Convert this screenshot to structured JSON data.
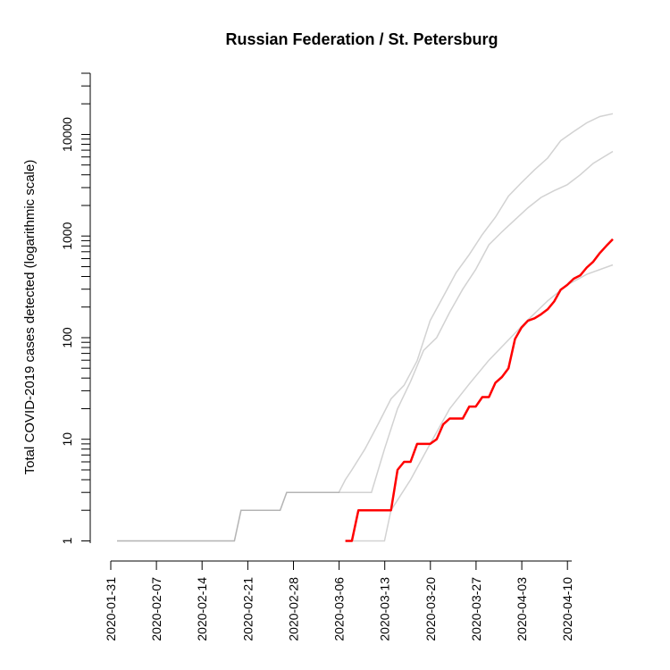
{
  "chart_data": {
    "type": "line",
    "title": "Russian Federation / St. Petersburg",
    "ylabel": "Total COVID-2019 cases detected (logarithmic scale)",
    "xlabel": "",
    "y_scale": "log",
    "xlim": [
      "2020-01-31",
      "2020-04-16"
    ],
    "ylim": [
      0.95,
      40000
    ],
    "x_tick_labels": [
      "2020-01-31",
      "2020-02-07",
      "2020-02-14",
      "2020-02-21",
      "2020-02-28",
      "2020-03-06",
      "2020-03-13",
      "2020-03-20",
      "2020-03-27",
      "2020-04-03",
      "2020-04-10"
    ],
    "y_tick_labels": [
      "1",
      "10",
      "100",
      "1000",
      "10000"
    ],
    "y_tick_values": [
      1,
      10,
      100,
      1000,
      10000
    ],
    "grid": false,
    "colors": {
      "highlight": "#ff0000",
      "background_series": "#7f7f7f"
    },
    "highlight_series": {
      "name": "St. Petersburg",
      "points": [
        [
          "2020-03-06",
          1
        ],
        [
          "2020-03-07",
          1
        ],
        [
          "2020-03-08",
          2
        ],
        [
          "2020-03-09",
          2
        ],
        [
          "2020-03-10",
          2
        ],
        [
          "2020-03-11",
          2
        ],
        [
          "2020-03-12",
          2
        ],
        [
          "2020-03-13",
          2
        ],
        [
          "2020-03-14",
          5
        ],
        [
          "2020-03-15",
          6
        ],
        [
          "2020-03-16",
          6
        ],
        [
          "2020-03-17",
          9
        ],
        [
          "2020-03-18",
          9
        ],
        [
          "2020-03-19",
          9
        ],
        [
          "2020-03-20",
          10
        ],
        [
          "2020-03-21",
          14
        ],
        [
          "2020-03-22",
          16
        ],
        [
          "2020-03-23",
          16
        ],
        [
          "2020-03-24",
          16
        ],
        [
          "2020-03-25",
          21
        ],
        [
          "2020-03-26",
          21
        ],
        [
          "2020-03-27",
          26
        ],
        [
          "2020-03-28",
          26
        ],
        [
          "2020-03-29",
          36
        ],
        [
          "2020-03-30",
          41
        ],
        [
          "2020-03-31",
          50
        ],
        [
          "2020-04-01",
          97
        ],
        [
          "2020-04-02",
          126
        ],
        [
          "2020-04-03",
          147
        ],
        [
          "2020-04-04",
          155
        ],
        [
          "2020-04-05",
          170
        ],
        [
          "2020-04-06",
          190
        ],
        [
          "2020-04-07",
          227
        ],
        [
          "2020-04-08",
          296
        ],
        [
          "2020-04-09",
          330
        ],
        [
          "2020-04-10",
          380
        ],
        [
          "2020-04-11",
          410
        ],
        [
          "2020-04-12",
          490
        ],
        [
          "2020-04-13",
          560
        ],
        [
          "2020-04-14",
          680
        ],
        [
          "2020-04-15",
          800
        ],
        [
          "2020-04-16",
          930
        ]
      ]
    },
    "background_series": [
      {
        "points": [
          [
            "2020-01-31",
            1
          ],
          [
            "2020-02-18",
            1
          ],
          [
            "2020-02-19",
            2
          ],
          [
            "2020-02-25",
            2
          ],
          [
            "2020-02-26",
            3
          ],
          [
            "2020-03-02",
            3
          ],
          [
            "2020-03-03",
            3
          ],
          [
            "2020-03-05",
            3
          ],
          [
            "2020-03-06",
            4
          ],
          [
            "2020-03-07",
            5
          ],
          [
            "2020-03-09",
            8
          ],
          [
            "2020-03-11",
            14
          ],
          [
            "2020-03-13",
            25
          ],
          [
            "2020-03-15",
            34
          ],
          [
            "2020-03-17",
            59
          ],
          [
            "2020-03-19",
            147
          ],
          [
            "2020-03-21",
            253
          ],
          [
            "2020-03-23",
            438
          ],
          [
            "2020-03-25",
            658
          ],
          [
            "2020-03-27",
            1036
          ],
          [
            "2020-03-29",
            1534
          ],
          [
            "2020-03-31",
            2475
          ],
          [
            "2020-04-02",
            3357
          ],
          [
            "2020-04-04",
            4484
          ],
          [
            "2020-04-06",
            5841
          ],
          [
            "2020-04-08",
            8672
          ],
          [
            "2020-04-10",
            10696
          ],
          [
            "2020-04-12",
            13002
          ],
          [
            "2020-04-14",
            15000
          ],
          [
            "2020-04-16",
            16000
          ]
        ]
      },
      {
        "points": [
          [
            "2020-01-31",
            1
          ],
          [
            "2020-02-18",
            1
          ],
          [
            "2020-02-19",
            2
          ],
          [
            "2020-02-25",
            2
          ],
          [
            "2020-02-26",
            3
          ],
          [
            "2020-03-10",
            3
          ],
          [
            "2020-03-12",
            8
          ],
          [
            "2020-03-14",
            20
          ],
          [
            "2020-03-16",
            37
          ],
          [
            "2020-03-18",
            75
          ],
          [
            "2020-03-20",
            100
          ],
          [
            "2020-03-22",
            178
          ],
          [
            "2020-03-24",
            300
          ],
          [
            "2020-03-26",
            470
          ],
          [
            "2020-03-28",
            820
          ],
          [
            "2020-03-30",
            1100
          ],
          [
            "2020-04-01",
            1450
          ],
          [
            "2020-04-03",
            1900
          ],
          [
            "2020-04-05",
            2400
          ],
          [
            "2020-04-07",
            2800
          ],
          [
            "2020-04-09",
            3200
          ],
          [
            "2020-04-11",
            4000
          ],
          [
            "2020-04-13",
            5200
          ],
          [
            "2020-04-16",
            6800
          ]
        ]
      },
      {
        "points": [
          [
            "2020-03-06",
            1
          ],
          [
            "2020-03-12",
            1
          ],
          [
            "2020-03-13",
            2
          ],
          [
            "2020-03-16",
            4
          ],
          [
            "2020-03-19",
            9
          ],
          [
            "2020-03-22",
            20
          ],
          [
            "2020-03-25",
            35
          ],
          [
            "2020-03-28",
            60
          ],
          [
            "2020-03-31",
            95
          ],
          [
            "2020-04-03",
            150
          ],
          [
            "2020-04-06",
            230
          ],
          [
            "2020-04-09",
            330
          ],
          [
            "2020-04-12",
            420
          ],
          [
            "2020-04-16",
            520
          ]
        ]
      }
    ]
  }
}
